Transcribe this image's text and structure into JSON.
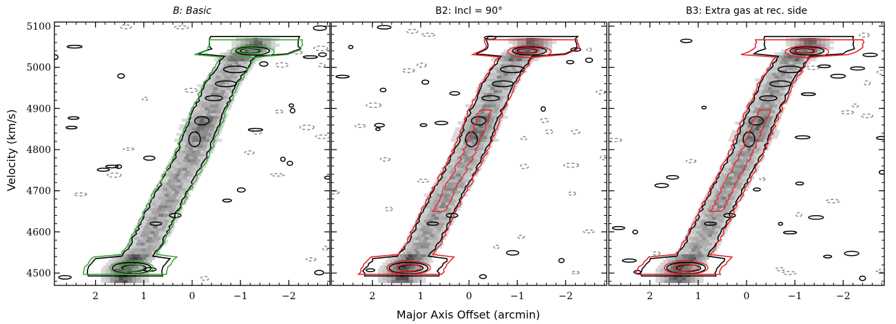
{
  "chart_data": {
    "type": "heatmap",
    "description_free": true,
    "xlabel": "Major Axis Offset (arcmin)",
    "ylabel": "Velocity (km/s)",
    "xlim": [
      2.85,
      -2.85
    ],
    "ylim": [
      4470,
      5110
    ],
    "xticks": [
      2,
      1,
      0,
      -1,
      -2
    ],
    "xtick_labels": [
      "2",
      "1",
      "0",
      "−1",
      "−2"
    ],
    "yticks": [
      4500,
      4600,
      4700,
      4800,
      4900,
      5000,
      5100
    ],
    "ytick_labels": [
      "4500",
      "4600",
      "4700",
      "4800",
      "4900",
      "5000",
      "5100"
    ],
    "colors": {
      "data_contour": "#000000",
      "negative_contour": "#888888",
      "model_b": "#3aa83a",
      "model_b2": "#e8242a",
      "model_b3": "#e8242a"
    },
    "panels": [
      {
        "title_prefix": "B: ",
        "title_main": "Basic",
        "title_italic": true,
        "model_color_key": "model_b",
        "model_variant": "basic"
      },
      {
        "title_prefix": "B2: ",
        "title_main": "Incl = 90°",
        "title_italic": false,
        "model_color_key": "model_b2",
        "model_variant": "incl90"
      },
      {
        "title_prefix": "B3: ",
        "title_main": "Extra gas at rec. side",
        "title_italic": false,
        "model_color_key": "model_b3",
        "model_variant": "extra"
      }
    ],
    "ridge": [
      {
        "x": 1.4,
        "v": 4510
      },
      {
        "x": 1.0,
        "v": 4560
      },
      {
        "x": 0.5,
        "v": 4680
      },
      {
        "x": 0.0,
        "v": 4790
      },
      {
        "x": -0.3,
        "v": 4880
      },
      {
        "x": -0.6,
        "v": 4960
      },
      {
        "x": -1.0,
        "v": 5030
      },
      {
        "x": -1.3,
        "v": 5045
      }
    ]
  }
}
